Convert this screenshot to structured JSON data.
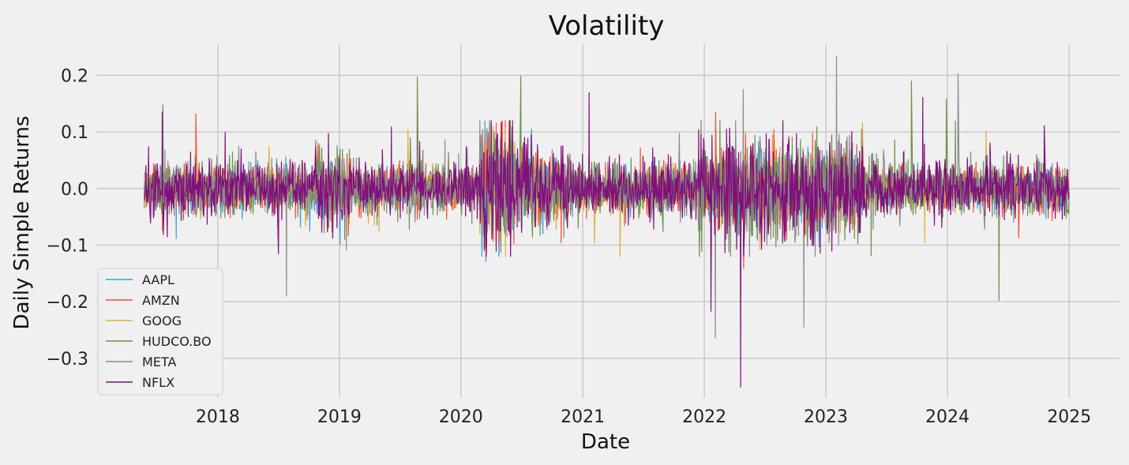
{
  "chart_data": {
    "type": "line",
    "title": "Volatility",
    "xlabel": "Date",
    "ylabel": "Daily Simple Returns",
    "x_start": "2017-05-25",
    "x_end": "2024-12-31",
    "xlim": [
      "2017-01-01",
      "2025-06-01"
    ],
    "ylim": [
      -0.37,
      0.255
    ],
    "x_ticks": [
      "2018",
      "2019",
      "2020",
      "2021",
      "2022",
      "2023",
      "2024",
      "2025"
    ],
    "y_ticks": [
      "0.2",
      "0.1",
      "0.0",
      "−0.1",
      "−0.2",
      "−0.3"
    ],
    "y_tick_values": [
      0.2,
      0.1,
      0.0,
      -0.1,
      -0.2,
      -0.3
    ],
    "grid": true,
    "legend_position": "lower-left",
    "series": [
      {
        "name": "AAPL",
        "color": "#30a2da",
        "spikes": [
          [
            "2018-12-26",
            0.07
          ],
          [
            "2019-01-03",
            -0.099
          ],
          [
            "2020-03-13",
            0.119
          ],
          [
            "2020-03-16",
            -0.129
          ],
          [
            "2020-07-31",
            0.105
          ],
          [
            "2020-09-03",
            -0.08
          ]
        ]
      },
      {
        "name": "AMZN",
        "color": "#fc4f30",
        "spikes": [
          [
            "2017-10-27",
            0.132
          ],
          [
            "2020-03-13",
            0.083
          ],
          [
            "2022-02-04",
            0.135
          ],
          [
            "2022-04-29",
            -0.141
          ],
          [
            "2022-07-29",
            0.104
          ],
          [
            "2022-10-28",
            -0.068
          ],
          [
            "2024-08-02",
            -0.087
          ]
        ]
      },
      {
        "name": "GOOG",
        "color": "#e5ae38",
        "spikes": [
          [
            "2019-07-26",
            0.104
          ],
          [
            "2019-04-30",
            -0.077
          ],
          [
            "2023-02-08",
            -0.077
          ],
          [
            "2023-10-25",
            -0.096
          ],
          [
            "2024-04-26",
            0.102
          ]
        ]
      },
      {
        "name": "HUDCO.BO",
        "color": "#6d904f",
        "spikes": [
          [
            "2017-07-20",
            0.148
          ],
          [
            "2019-08-23",
            0.197
          ],
          [
            "2020-06-29",
            0.199
          ],
          [
            "2023-09-15",
            0.19
          ],
          [
            "2023-12-29",
            0.158
          ],
          [
            "2024-06-04",
            -0.198
          ],
          [
            "2024-01-25",
            0.119
          ]
        ]
      },
      {
        "name": "META",
        "color": "#8b8b8b",
        "spikes": [
          [
            "2018-07-26",
            -0.19
          ],
          [
            "2022-02-03",
            -0.264
          ],
          [
            "2022-04-28",
            0.175
          ],
          [
            "2022-10-27",
            -0.245
          ],
          [
            "2023-02-02",
            0.233
          ],
          [
            "2024-02-02",
            0.203
          ]
        ]
      },
      {
        "name": "NFLX",
        "color": "#810f7c",
        "spikes": [
          [
            "2017-07-18",
            0.135
          ],
          [
            "2018-01-23",
            0.099
          ],
          [
            "2021-01-20",
            0.169
          ],
          [
            "2022-01-21",
            -0.217
          ],
          [
            "2022-04-20",
            -0.351
          ],
          [
            "2023-10-19",
            0.161
          ],
          [
            "2024-10-18",
            0.111
          ]
        ]
      }
    ]
  }
}
